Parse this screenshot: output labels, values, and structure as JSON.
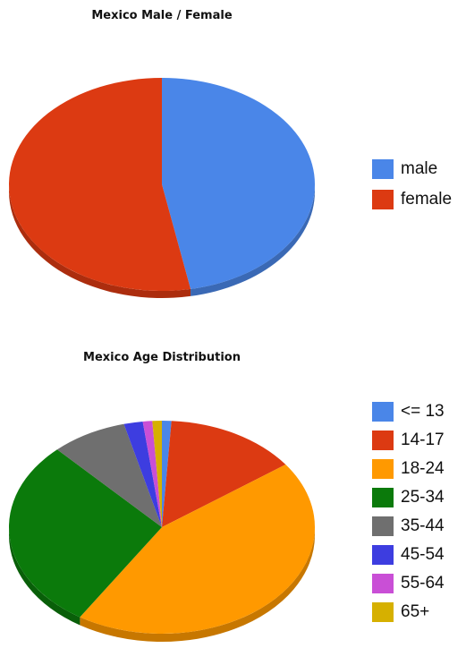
{
  "chart_data": [
    {
      "type": "pie",
      "title": "Mexico Male / Female",
      "categories": [
        "male",
        "female"
      ],
      "values": [
        47,
        53
      ],
      "colors": [
        "#4a86e8",
        "#dc3a12"
      ],
      "legend_position": "right"
    },
    {
      "type": "pie",
      "title": "Mexico Age Distribution",
      "categories": [
        "<= 13",
        "14-17",
        "18-24",
        "25-34",
        "35-44",
        "45-54",
        "55-64",
        "65+"
      ],
      "values": [
        1,
        14,
        44,
        29,
        8,
        2,
        1,
        1
      ],
      "colors": [
        "#4a86e8",
        "#dc3a12",
        "#ff9900",
        "#0b7a0b",
        "#6f6f6f",
        "#3d3de0",
        "#c94fd6",
        "#d6b000"
      ],
      "legend_position": "right"
    }
  ]
}
